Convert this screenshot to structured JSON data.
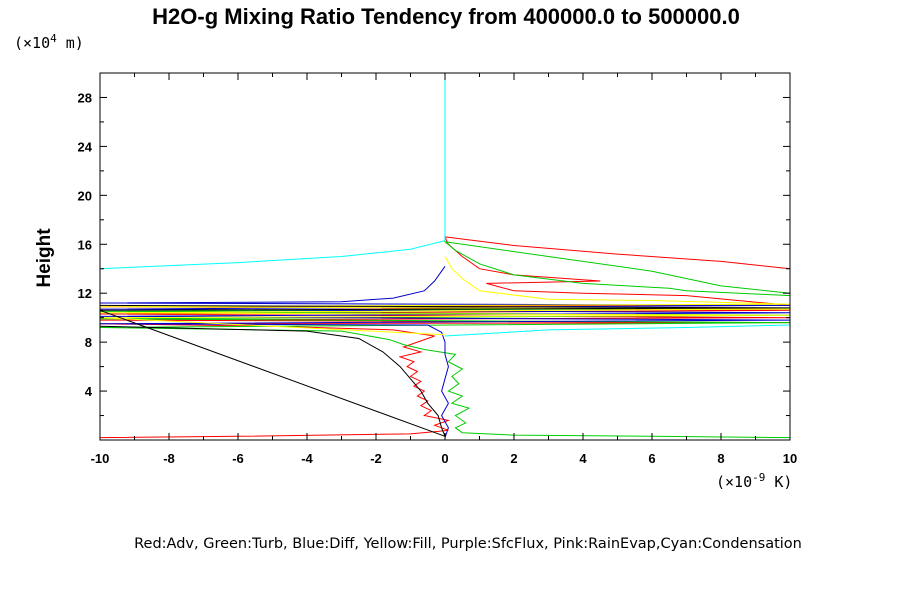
{
  "chart_data": {
    "type": "line",
    "title": "H2O-g Mixing Ratio Tendency from 400000.0 to 500000.0",
    "y_unit_prefix": "(×10",
    "y_unit_exp": "4",
    "y_unit_suffix": " m)",
    "x_unit_prefix": "(×10",
    "x_unit_exp": "-9",
    "x_unit_suffix": " K)",
    "ylabel": "Height",
    "xlim": [
      -10,
      10
    ],
    "ylim": [
      0,
      30
    ],
    "x_ticks": [
      -10,
      -8,
      -6,
      -4,
      -2,
      0,
      2,
      4,
      6,
      8,
      10
    ],
    "x_tick_labels": [
      "-10",
      "-8",
      "-6",
      "-4",
      "-2",
      "0",
      "2",
      "4",
      "6",
      "8",
      "10"
    ],
    "y_ticks": [
      4,
      8,
      12,
      16,
      20,
      24,
      28
    ],
    "y_tick_labels": [
      "4",
      "8",
      "12",
      "16",
      "20",
      "24",
      "28"
    ],
    "legend_text": "Red:Adv, Green:Turb, Blue:Diff, Yellow:Fill, Purple:SfcFlux, Pink:RainEvap,Cyan:Condensation",
    "series": [
      {
        "color": "#ff0000",
        "points": [
          [
            -10,
            0.2
          ],
          [
            -6,
            0.3
          ],
          [
            -1,
            0.5
          ],
          [
            -0.2,
            0.7
          ],
          [
            0.1,
            0.8
          ],
          [
            -0.3,
            1.2
          ],
          [
            0.1,
            1.6
          ],
          [
            -0.6,
            2.0
          ],
          [
            -0.4,
            2.4
          ],
          [
            -0.7,
            2.8
          ],
          [
            -0.5,
            3.2
          ],
          [
            -0.8,
            3.6
          ],
          [
            -0.6,
            4.0
          ],
          [
            -0.9,
            4.4
          ],
          [
            -0.7,
            4.8
          ],
          [
            -1.0,
            5.2
          ],
          [
            -0.8,
            5.6
          ],
          [
            -1.1,
            6.0
          ],
          [
            -0.9,
            6.4
          ],
          [
            -1.3,
            6.8
          ],
          [
            -0.7,
            7.2
          ],
          [
            -1.2,
            7.6
          ],
          [
            -0.8,
            8.0
          ],
          [
            -0.3,
            8.5
          ],
          [
            -1.5,
            9.0
          ],
          [
            -5,
            9.3
          ],
          [
            -10,
            9.5
          ],
          [
            10,
            9.6
          ],
          [
            -10,
            9.8
          ],
          [
            10,
            10.0
          ],
          [
            -10,
            10.3
          ],
          [
            10,
            10.6
          ],
          [
            -10,
            10.9
          ],
          [
            10,
            11.0
          ],
          [
            7,
            11.8
          ],
          [
            4,
            12.0
          ],
          [
            2,
            12.2
          ],
          [
            1.2,
            12.8
          ],
          [
            4.5,
            13.0
          ],
          [
            2,
            13.5
          ],
          [
            1.0,
            14.0
          ],
          [
            0.5,
            15.0
          ],
          [
            0.1,
            16.0
          ],
          [
            0,
            16.6
          ],
          [
            2,
            15.9
          ],
          [
            5,
            15.2
          ],
          [
            8,
            14.6
          ],
          [
            10,
            14.0
          ]
        ]
      },
      {
        "color": "#00cc00",
        "points": [
          [
            10,
            0.2
          ],
          [
            6,
            0.3
          ],
          [
            2,
            0.4
          ],
          [
            0.5,
            0.6
          ],
          [
            0.3,
            1.0
          ],
          [
            0.6,
            1.4
          ],
          [
            0.3,
            2.0
          ],
          [
            0.7,
            2.6
          ],
          [
            0.2,
            3.0
          ],
          [
            0.5,
            3.6
          ],
          [
            0.1,
            4.0
          ],
          [
            0.4,
            4.6
          ],
          [
            0.2,
            5.2
          ],
          [
            0.5,
            5.8
          ],
          [
            0.1,
            6.4
          ],
          [
            0.3,
            7.0
          ],
          [
            -0.6,
            7.4
          ],
          [
            -1.2,
            7.8
          ],
          [
            -1.6,
            8.2
          ],
          [
            -2.4,
            8.6
          ],
          [
            -3,
            8.9
          ],
          [
            -10,
            9.2
          ],
          [
            10,
            9.6
          ],
          [
            -10,
            9.9
          ],
          [
            10,
            10.2
          ],
          [
            -10,
            10.5
          ],
          [
            10,
            10.8
          ],
          [
            10,
            11.8
          ],
          [
            7,
            12.2
          ],
          [
            6.5,
            12.4
          ],
          [
            4,
            12.8
          ],
          [
            2,
            13.5
          ],
          [
            1.0,
            14.4
          ],
          [
            0.3,
            15.5
          ],
          [
            0,
            16.2
          ],
          [
            3,
            15.0
          ],
          [
            6,
            13.8
          ],
          [
            8,
            12.6
          ],
          [
            10,
            12.0
          ]
        ]
      },
      {
        "color": "#0000cc",
        "points": [
          [
            0,
            0.2
          ],
          [
            0.1,
            1.0
          ],
          [
            -0.1,
            2.0
          ],
          [
            0.1,
            3.0
          ],
          [
            -0.1,
            4.0
          ],
          [
            0,
            5.0
          ],
          [
            0.1,
            6.0
          ],
          [
            0,
            7.0
          ],
          [
            0,
            8.0
          ],
          [
            -0.1,
            8.8
          ],
          [
            -0.5,
            9.4
          ],
          [
            -10,
            9.5
          ],
          [
            10,
            9.8
          ],
          [
            -10,
            10.1
          ],
          [
            10,
            10.4
          ],
          [
            -10,
            10.7
          ],
          [
            10,
            11.0
          ],
          [
            -10,
            11.2
          ],
          [
            -3,
            11.3
          ],
          [
            -1.5,
            11.6
          ],
          [
            -0.6,
            12.2
          ],
          [
            -0.3,
            13.0
          ],
          [
            0,
            14.2
          ]
        ]
      },
      {
        "color": "#ffff00",
        "points": [
          [
            0,
            8.6
          ],
          [
            -10,
            10.0
          ],
          [
            10,
            10.2
          ],
          [
            -10,
            10.4
          ],
          [
            10,
            10.7
          ],
          [
            -10,
            10.9
          ],
          [
            10,
            11.1
          ],
          [
            6,
            11.4
          ],
          [
            3,
            11.5
          ],
          [
            1.0,
            12.2
          ],
          [
            0.5,
            13.2
          ],
          [
            0.2,
            14.0
          ],
          [
            0,
            15.0
          ]
        ]
      },
      {
        "color": "#000000",
        "points": [
          [
            -10,
            9.3
          ],
          [
            -4,
            8.9
          ],
          [
            -2.5,
            8.3
          ],
          [
            -1.8,
            7.2
          ],
          [
            -1.3,
            6.0
          ],
          [
            -1.0,
            5.0
          ],
          [
            -0.7,
            4.0
          ],
          [
            -0.5,
            3.0
          ],
          [
            -0.2,
            2.0
          ],
          [
            -0.1,
            1.0
          ],
          [
            0,
            0.3
          ],
          [
            -10,
            10.6
          ],
          [
            10,
            10.8
          ],
          [
            -10,
            11.0
          ]
        ]
      },
      {
        "color": "#00ffff",
        "points": [
          [
            -10,
            14.0
          ],
          [
            -6,
            14.5
          ],
          [
            -3,
            15.0
          ],
          [
            -1,
            15.6
          ],
          [
            0,
            16.3
          ],
          [
            0,
            20
          ],
          [
            0,
            30
          ],
          [
            0,
            30
          ]
        ]
      },
      {
        "color": "#00ffff",
        "points": [
          [
            0,
            8.5
          ],
          [
            3,
            9.0
          ],
          [
            7,
            9.2
          ],
          [
            10,
            9.4
          ]
        ]
      }
    ]
  }
}
